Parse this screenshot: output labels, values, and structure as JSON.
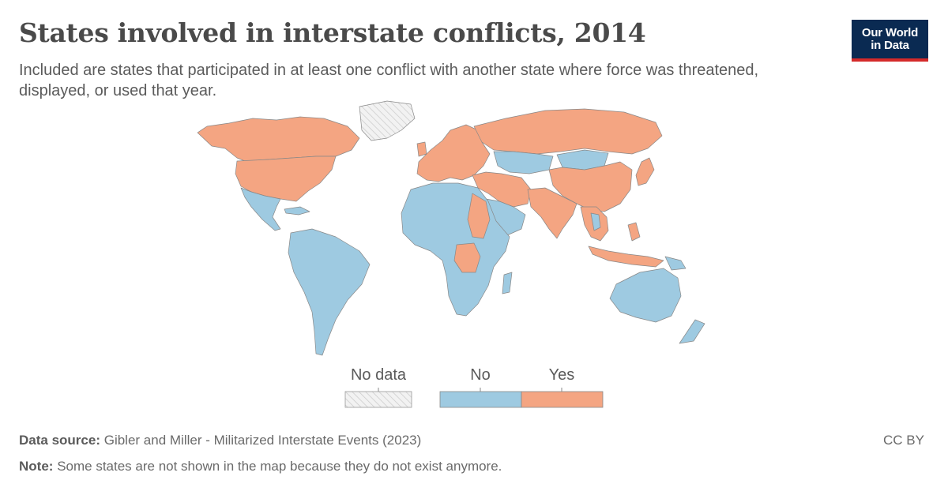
{
  "header": {
    "title": "States involved in interstate conflicts, 2014",
    "subtitle": "Included are states that participated in at least one conflict with another state where force was threatened, displayed, or used that year."
  },
  "logo": {
    "line1": "Our World",
    "line2": "in Data"
  },
  "legend": {
    "no_data_label": "No data",
    "no_label": "No",
    "yes_label": "Yes"
  },
  "colors": {
    "no": "#9ecae1",
    "yes": "#f4a582",
    "no_data": "#e0e0e0",
    "border": "#888888"
  },
  "map_data": {
    "year": 2014,
    "yes": [
      "United States",
      "Canada",
      "Russia",
      "China",
      "Turkey",
      "Japan",
      "India",
      "Pakistan",
      "Afghanistan",
      "Iran",
      "Iraq",
      "Syria",
      "South Sudan",
      "Sudan",
      "Democratic Republic of Congo",
      "Indonesia",
      "Philippines",
      "Ukraine",
      "Poland",
      "France",
      "Spain",
      "United Kingdom",
      "Norway",
      "Sweden",
      "Finland",
      "Germany",
      "Saudi Arabia",
      "Vietnam",
      "South Korea",
      "North Korea",
      "Papua New Guinea"
    ],
    "no": [
      "Mexico",
      "Brazil",
      "Argentina",
      "Australia",
      "Kazakhstan",
      "Mongolia",
      "Egypt",
      "Libya",
      "Algeria",
      "Niger",
      "Chad",
      "Nigeria",
      "Ethiopia",
      "Kenya",
      "Angola",
      "South Africa",
      "Madagascar",
      "Chile",
      "Peru",
      "Colombia",
      "Venezuela",
      "Bolivia",
      "Thailand",
      "New Zealand"
    ],
    "no_data": [
      "Greenland"
    ]
  },
  "footer": {
    "source_label": "Data source:",
    "source_text": "Gibler and Miller - Militarized Interstate Events (2023)",
    "note_label": "Note:",
    "note_text": "Some states are not shown in the map because they do not exist anymore.",
    "license": "CC BY"
  }
}
